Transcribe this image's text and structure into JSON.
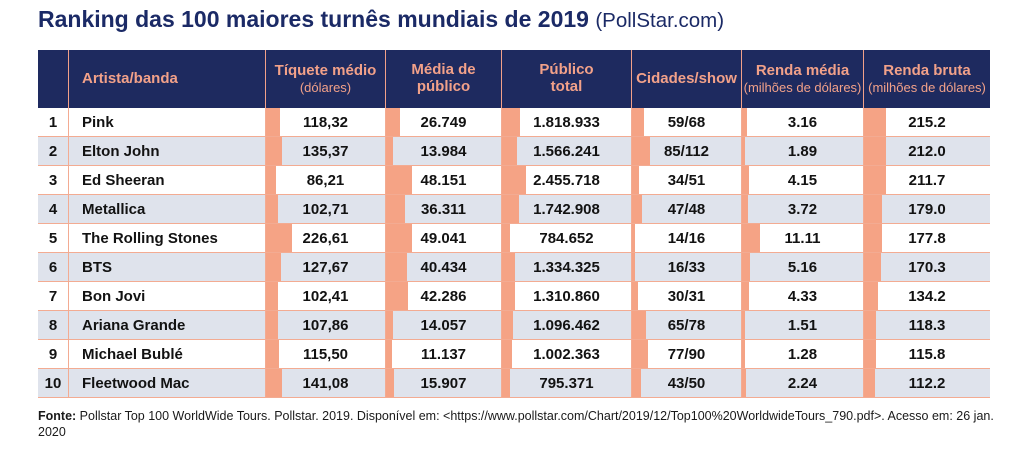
{
  "page_title": {
    "main": "Ranking das 100 maiores turnês mundiais de 2019",
    "suffix": "(PollStar.com)"
  },
  "footer": {
    "label": "Fonte:",
    "text": "Pollstar Top 100 WorldWide Tours. Pollstar. 2019. Disponível em: <https://www.pollstar.com/Chart/2019/12/Top100%20WorldwideTours_790.pdf>. Acesso em: 26 jan. 2020"
  },
  "colors": {
    "title_navy": "#1b2a66",
    "header_navy": "#1e2a5f",
    "header_text_salmon": "#f2a189",
    "bar_salmon": "#f5a385",
    "stripe_gray": "#dfe3ec",
    "divider_salmon": "#f3ab92",
    "body_text": "#121212"
  },
  "chart_data": {
    "type": "table",
    "title": "Ranking das 100 maiores turnês mundiais de 2019 (PollStar.com)",
    "layout_hints": {
      "striped_rows": "even ranks shaded",
      "inline_bars": "each numeric cell has a salmon bar at cell left, width proportional to value relative to column max"
    },
    "columns": [
      {
        "label": "Artista/banda",
        "sublabel": ""
      },
      {
        "label": "Tíquete médio",
        "sublabel": "(dólares)"
      },
      {
        "label": "Média de público",
        "sublabel": ""
      },
      {
        "label": "Público total",
        "sublabel": ""
      },
      {
        "label": "Cidades/show",
        "sublabel": ""
      },
      {
        "label": "Renda média",
        "sublabel": "(milhões de dólares)"
      },
      {
        "label": "Renda bruta",
        "sublabel": "(milhões de dólares)"
      }
    ],
    "rows": [
      {
        "rank": "1",
        "artist": "Pink",
        "ticket_avg": {
          "text": "118,32",
          "value": 118.32
        },
        "avg_audience": {
          "text": "26.749",
          "value": 26749
        },
        "total_audience": {
          "text": "1.818.933",
          "value": 1818933
        },
        "cities_shows": {
          "text": "59/68",
          "value": 59
        },
        "avg_gross": {
          "text": "3.16",
          "value": 3.16
        },
        "gross": {
          "text": "215.2",
          "value": 215.2
        }
      },
      {
        "rank": "2",
        "artist": "Elton John",
        "ticket_avg": {
          "text": "135,37",
          "value": 135.37
        },
        "avg_audience": {
          "text": "13.984",
          "value": 13984
        },
        "total_audience": {
          "text": "1.566.241",
          "value": 1566241
        },
        "cities_shows": {
          "text": "85/112",
          "value": 85
        },
        "avg_gross": {
          "text": "1.89",
          "value": 1.89
        },
        "gross": {
          "text": "212.0",
          "value": 212.0
        }
      },
      {
        "rank": "3",
        "artist": "Ed Sheeran",
        "ticket_avg": {
          "text": "86,21",
          "value": 86.21
        },
        "avg_audience": {
          "text": "48.151",
          "value": 48151
        },
        "total_audience": {
          "text": "2.455.718",
          "value": 2455718
        },
        "cities_shows": {
          "text": "34/51",
          "value": 34
        },
        "avg_gross": {
          "text": "4.15",
          "value": 4.15
        },
        "gross": {
          "text": "211.7",
          "value": 211.7
        }
      },
      {
        "rank": "4",
        "artist": "Metallica",
        "ticket_avg": {
          "text": "102,71",
          "value": 102.71
        },
        "avg_audience": {
          "text": "36.311",
          "value": 36311
        },
        "total_audience": {
          "text": "1.742.908",
          "value": 1742908
        },
        "cities_shows": {
          "text": "47/48",
          "value": 47
        },
        "avg_gross": {
          "text": "3.72",
          "value": 3.72
        },
        "gross": {
          "text": "179.0",
          "value": 179.0
        }
      },
      {
        "rank": "5",
        "artist": "The Rolling Stones",
        "ticket_avg": {
          "text": "226,61",
          "value": 226.61
        },
        "avg_audience": {
          "text": "49.041",
          "value": 49041
        },
        "total_audience": {
          "text": "784.652",
          "value": 784652
        },
        "cities_shows": {
          "text": "14/16",
          "value": 14
        },
        "avg_gross": {
          "text": "11.11",
          "value": 11.11
        },
        "gross": {
          "text": "177.8",
          "value": 177.8
        }
      },
      {
        "rank": "6",
        "artist": "BTS",
        "ticket_avg": {
          "text": "127,67",
          "value": 127.67
        },
        "avg_audience": {
          "text": "40.434",
          "value": 40434
        },
        "total_audience": {
          "text": "1.334.325",
          "value": 1334325
        },
        "cities_shows": {
          "text": "16/33",
          "value": 16
        },
        "avg_gross": {
          "text": "5.16",
          "value": 5.16
        },
        "gross": {
          "text": "170.3",
          "value": 170.3
        }
      },
      {
        "rank": "7",
        "artist": "Bon Jovi",
        "ticket_avg": {
          "text": "102,41",
          "value": 102.41
        },
        "avg_audience": {
          "text": "42.286",
          "value": 42286
        },
        "total_audience": {
          "text": "1.310.860",
          "value": 1310860
        },
        "cities_shows": {
          "text": "30/31",
          "value": 30
        },
        "avg_gross": {
          "text": "4.33",
          "value": 4.33
        },
        "gross": {
          "text": "134.2",
          "value": 134.2
        }
      },
      {
        "rank": "8",
        "artist": "Ariana Grande",
        "ticket_avg": {
          "text": "107,86",
          "value": 107.86
        },
        "avg_audience": {
          "text": "14.057",
          "value": 14057
        },
        "total_audience": {
          "text": "1.096.462",
          "value": 1096462
        },
        "cities_shows": {
          "text": "65/78",
          "value": 65
        },
        "avg_gross": {
          "text": "1.51",
          "value": 1.51
        },
        "gross": {
          "text": "118.3",
          "value": 118.3
        }
      },
      {
        "rank": "9",
        "artist": "Michael Bublé",
        "ticket_avg": {
          "text": "115,50",
          "value": 115.5
        },
        "avg_audience": {
          "text": "11.137",
          "value": 11137
        },
        "total_audience": {
          "text": "1.002.363",
          "value": 1002363
        },
        "cities_shows": {
          "text": "77/90",
          "value": 77
        },
        "avg_gross": {
          "text": "1.28",
          "value": 1.28
        },
        "gross": {
          "text": "115.8",
          "value": 115.8
        }
      },
      {
        "rank": "10",
        "artist": "Fleetwood Mac",
        "ticket_avg": {
          "text": "141,08",
          "value": 141.08
        },
        "avg_audience": {
          "text": "15.907",
          "value": 15907
        },
        "total_audience": {
          "text": "795.371",
          "value": 795371
        },
        "cities_shows": {
          "text": "43/50",
          "value": 43
        },
        "avg_gross": {
          "text": "2.24",
          "value": 2.24
        },
        "gross": {
          "text": "112.2",
          "value": 112.2
        }
      }
    ]
  }
}
